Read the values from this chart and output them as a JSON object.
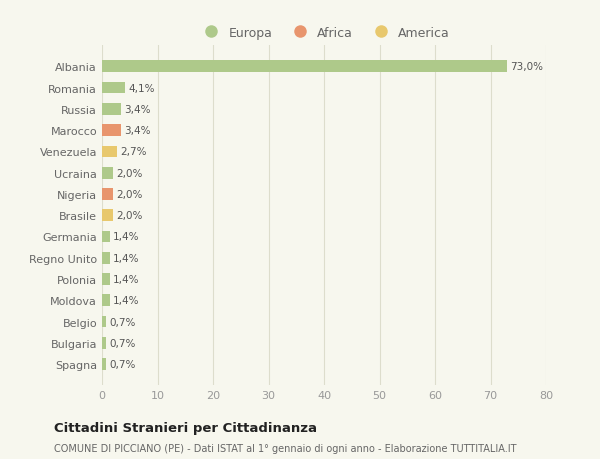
{
  "countries": [
    "Albania",
    "Romania",
    "Russia",
    "Marocco",
    "Venezuela",
    "Ucraina",
    "Nigeria",
    "Brasile",
    "Germania",
    "Regno Unito",
    "Polonia",
    "Moldova",
    "Belgio",
    "Bulgaria",
    "Spagna"
  ],
  "values": [
    73.0,
    4.1,
    3.4,
    3.4,
    2.7,
    2.0,
    2.0,
    2.0,
    1.4,
    1.4,
    1.4,
    1.4,
    0.7,
    0.7,
    0.7
  ],
  "labels": [
    "73,0%",
    "4,1%",
    "3,4%",
    "3,4%",
    "2,7%",
    "2,0%",
    "2,0%",
    "2,0%",
    "1,4%",
    "1,4%",
    "1,4%",
    "1,4%",
    "0,7%",
    "0,7%",
    "0,7%"
  ],
  "continents": [
    "Europa",
    "Europa",
    "Europa",
    "Africa",
    "America",
    "Europa",
    "Africa",
    "America",
    "Europa",
    "Europa",
    "Europa",
    "Europa",
    "Europa",
    "Europa",
    "Europa"
  ],
  "colors": {
    "Europa": "#aec98a",
    "Africa": "#e8956d",
    "America": "#e8c86d"
  },
  "legend_items": [
    "Europa",
    "Africa",
    "America"
  ],
  "legend_colors": [
    "#aec98a",
    "#e8956d",
    "#e8c86d"
  ],
  "xlim": [
    0,
    80
  ],
  "xticks": [
    0,
    10,
    20,
    30,
    40,
    50,
    60,
    70,
    80
  ],
  "title": "Cittadini Stranieri per Cittadinanza",
  "subtitle": "COMUNE DI PICCIANO (PE) - Dati ISTAT al 1° gennaio di ogni anno - Elaborazione TUTTITALIA.IT",
  "bg_color": "#f7f7ee",
  "grid_color": "#ddddcc",
  "bar_height": 0.55
}
